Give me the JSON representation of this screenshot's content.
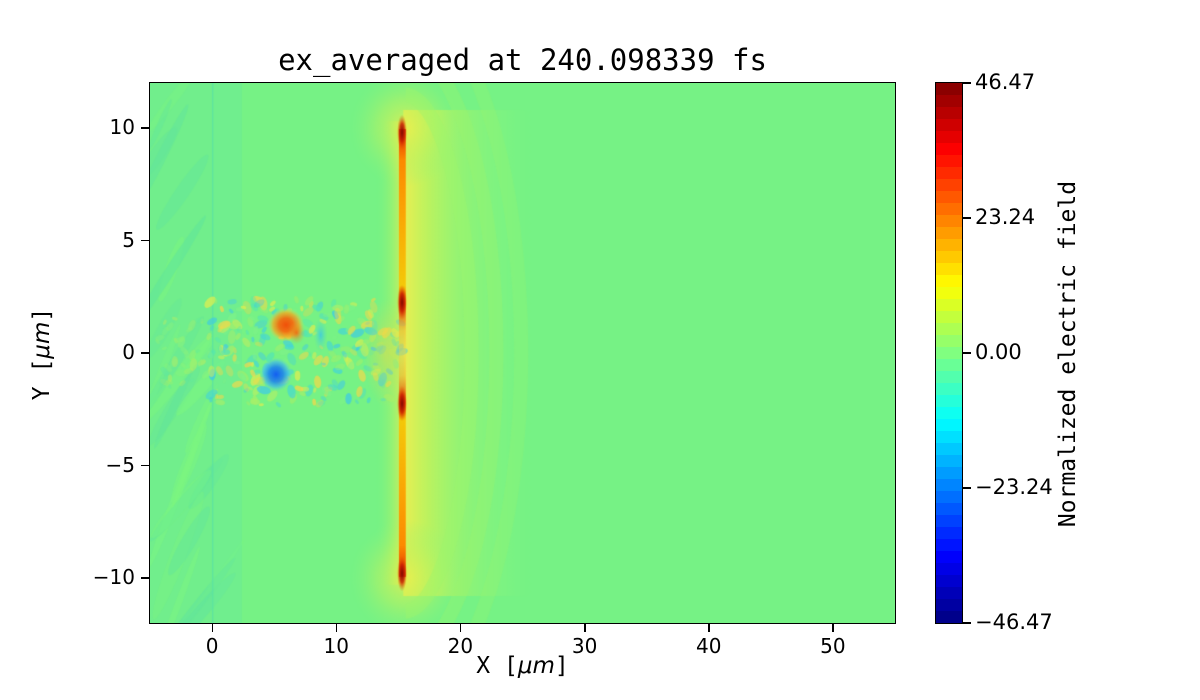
{
  "figure": {
    "title": "ex_averaged at 240.098339 fs",
    "xlabel": {
      "pre": "X [",
      "unit": "μm",
      "post": "]"
    },
    "ylabel": {
      "pre": "Y [",
      "unit": "μm",
      "post": "]"
    }
  },
  "axes": {
    "x": {
      "lim": [
        -5,
        55
      ],
      "tick_values": [
        0,
        10,
        20,
        30,
        40,
        50
      ],
      "ticks": [
        "0",
        "10",
        "20",
        "30",
        "40",
        "50"
      ]
    },
    "y": {
      "lim": [
        -12,
        12
      ],
      "tick_values": [
        10,
        5,
        0,
        -5,
        -10
      ],
      "ticks": [
        "10",
        "5",
        "0",
        "−5",
        "−10"
      ]
    }
  },
  "colorbar": {
    "label": "Normalized electric field",
    "vmin": -46.47,
    "vmax": 46.47,
    "tick_values": [
      46.47,
      23.24,
      0.0,
      -23.24,
      -46.47
    ],
    "ticks": [
      "46.47",
      "23.24",
      "0.00",
      "−23.24",
      "−46.47"
    ],
    "colormap": "jet",
    "steps": 45
  },
  "chart_data": {
    "type": "heatmap",
    "title": "ex_averaged at 240.098339 fs",
    "xlabel": "X [μm]",
    "ylabel": "Y [μm]",
    "xlim": [
      -5,
      55
    ],
    "ylim": [
      -12,
      12
    ],
    "colorbar_label": "Normalized electric field",
    "clim": [
      -46.47,
      46.47
    ],
    "colormap": "jet",
    "background_value": 0.0,
    "units": "μm",
    "seed": 20240,
    "features": [
      {
        "type": "fill",
        "color": "#76F285"
      },
      {
        "type": "rect",
        "x": [
          -5,
          0
        ],
        "y": [
          -12,
          12
        ],
        "color": "#71EE8C"
      },
      {
        "type": "streaks",
        "x": [
          -4.9,
          -0.1
        ],
        "y": [
          -12,
          12
        ],
        "n": 28,
        "colors": [
          "#62E59B",
          "#7DF77F"
        ],
        "alpha": 0.5,
        "angle": -60,
        "len": [
          1.5,
          4.0
        ],
        "w": [
          0.15,
          0.45
        ]
      },
      {
        "type": "rect",
        "x": [
          0,
          2.4
        ],
        "y": [
          -12,
          12
        ],
        "color": "#6BEB95",
        "alpha": 0.55
      },
      {
        "type": "vline",
        "x": 0.05,
        "y": [
          -12,
          12
        ],
        "w": 0.12,
        "color": "#5BE2A2",
        "alpha": 0.8
      },
      {
        "type": "hgrad",
        "x": [
          15.4,
          26.0
        ],
        "y": [
          -10.8,
          10.8
        ],
        "stops": [
          [
            0,
            "#F2EE4E",
            0.95
          ],
          [
            0.18,
            "#CFF355",
            0.8
          ],
          [
            0.45,
            "#A8F468",
            0.55
          ],
          [
            0.75,
            "#8DF67B",
            0.3
          ],
          [
            1,
            "#7BF685",
            0
          ]
        ]
      },
      {
        "type": "blob",
        "cx": 15.6,
        "cy": 10.0,
        "rx": 4.5,
        "ry": 2.6,
        "stops": [
          [
            0,
            "#E8EF4F",
            0.85
          ],
          [
            0.5,
            "#BDF35F",
            0.5
          ],
          [
            1,
            "#8CF67B",
            0
          ]
        ]
      },
      {
        "type": "blob",
        "cx": 15.6,
        "cy": -10.0,
        "rx": 4.5,
        "ry": 2.6,
        "stops": [
          [
            0,
            "#E8EF4F",
            0.85
          ],
          [
            0.5,
            "#BDF35F",
            0.5
          ],
          [
            1,
            "#8CF67B",
            0
          ]
        ]
      },
      {
        "type": "hgrad",
        "x": [
          13.2,
          15.4
        ],
        "y": [
          -10.3,
          10.3
        ],
        "stops": [
          [
            0,
            "#84F47E",
            0
          ],
          [
            0.6,
            "#C8F257",
            0.4
          ],
          [
            1,
            "#EDED4F",
            0.8
          ]
        ]
      },
      {
        "type": "arcs",
        "cx": 15.4,
        "cy": 0,
        "r": [
          5.5,
          7.5,
          9.5
        ],
        "ry_add": 6,
        "color": "#9EF66B",
        "alpha": [
          0.4,
          0.3,
          0.22
        ],
        "lw": 14,
        "clipx": 15.6
      },
      {
        "type": "speckles",
        "x": [
          -0.2,
          15.3
        ],
        "y": [
          -2.3,
          2.4
        ],
        "n": 240,
        "palette": [
          "#54E6B2",
          "#43D6D6",
          "#A9EF67",
          "#DBEE52",
          "#7DF288",
          "#3CC9E9",
          "#EFD94C"
        ],
        "alpha": 0.55,
        "r": [
          1.5,
          4.5
        ]
      },
      {
        "type": "speckles",
        "x": [
          -4.6,
          -0.1
        ],
        "y": [
          -1.8,
          1.6
        ],
        "n": 40,
        "palette": [
          "#B9EF60",
          "#63E89E",
          "#8FF478"
        ],
        "alpha": 0.35,
        "r": [
          1.5,
          4.0
        ]
      },
      {
        "type": "blob",
        "cx": 14.0,
        "cy": 0,
        "rx": 1.8,
        "ry": 2.4,
        "stops": [
          [
            0,
            "#EDD944",
            0.5
          ],
          [
            1,
            "#EDD944",
            0
          ]
        ]
      },
      {
        "type": "blob",
        "cx": 5.95,
        "cy": 1.25,
        "rx": 1.45,
        "ry": 0.75,
        "stops": [
          [
            0,
            "#F1500A",
            1
          ],
          [
            0.4,
            "#F36A10",
            0.95
          ],
          [
            0.72,
            "#F5A81E",
            0.75
          ],
          [
            1,
            "#E8D94A",
            0
          ]
        ]
      },
      {
        "type": "blob",
        "cx": 6.8,
        "cy": 0.9,
        "rx": 0.7,
        "ry": 0.5,
        "stops": [
          [
            0,
            "#F15E0C",
            0.8
          ],
          [
            1,
            "#F1A020",
            0
          ]
        ]
      },
      {
        "type": "blob",
        "cx": 5.15,
        "cy": -0.95,
        "rx": 1.3,
        "ry": 0.75,
        "stops": [
          [
            0,
            "#135EF2",
            1
          ],
          [
            0.45,
            "#1F86EC",
            0.9
          ],
          [
            0.75,
            "#41BBE9",
            0.7
          ],
          [
            1,
            "#62E0C8",
            0
          ]
        ]
      },
      {
        "type": "blob",
        "cx": 8.75,
        "cy": 0.8,
        "rx": 0.55,
        "ry": 0.75,
        "stops": [
          [
            0,
            "#35C3F0",
            0.75
          ],
          [
            1,
            "#55E0C0",
            0
          ]
        ]
      },
      {
        "type": "vgrad",
        "x": [
          15.05,
          15.6
        ],
        "y": [
          -9.95,
          9.95
        ],
        "stops": [
          [
            0,
            "#C21A00",
            1
          ],
          [
            0.03,
            "#EE5500",
            1
          ],
          [
            0.07,
            "#FC8A00",
            1
          ],
          [
            0.2,
            "#FCA400",
            0.95
          ],
          [
            0.35,
            "#F8C400",
            0.9
          ],
          [
            0.39,
            "#E03500",
            1
          ],
          [
            0.45,
            "#F0B830",
            0.6
          ],
          [
            0.5,
            "#E8D84A",
            0.45
          ],
          [
            0.55,
            "#F0B830",
            0.6
          ],
          [
            0.61,
            "#E03500",
            1
          ],
          [
            0.65,
            "#F8C400",
            0.9
          ],
          [
            0.8,
            "#FCA400",
            0.95
          ],
          [
            0.93,
            "#FC8A00",
            1
          ],
          [
            0.97,
            "#EE5500",
            1
          ],
          [
            1,
            "#C21A00",
            1
          ]
        ]
      },
      {
        "type": "blob",
        "cx": 15.3,
        "cy": 9.8,
        "rx": 0.4,
        "ry": 0.8,
        "stops": [
          [
            0,
            "#7E0A00",
            1
          ],
          [
            0.5,
            "#C81C00",
            0.85
          ],
          [
            1,
            "#E86000",
            0
          ]
        ]
      },
      {
        "type": "blob",
        "cx": 15.3,
        "cy": 2.25,
        "rx": 0.4,
        "ry": 0.8,
        "stops": [
          [
            0,
            "#7E0A00",
            1
          ],
          [
            0.5,
            "#C81C00",
            0.85
          ],
          [
            1,
            "#E86000",
            0
          ]
        ]
      },
      {
        "type": "blob",
        "cx": 15.3,
        "cy": -2.25,
        "rx": 0.4,
        "ry": 0.8,
        "stops": [
          [
            0,
            "#7E0A00",
            1
          ],
          [
            0.5,
            "#C81C00",
            0.85
          ],
          [
            1,
            "#E86000",
            0
          ]
        ]
      },
      {
        "type": "blob",
        "cx": 15.3,
        "cy": -9.8,
        "rx": 0.4,
        "ry": 0.8,
        "stops": [
          [
            0,
            "#7E0A00",
            1
          ],
          [
            0.5,
            "#C81C00",
            0.85
          ],
          [
            1,
            "#E86000",
            0
          ]
        ]
      }
    ]
  }
}
